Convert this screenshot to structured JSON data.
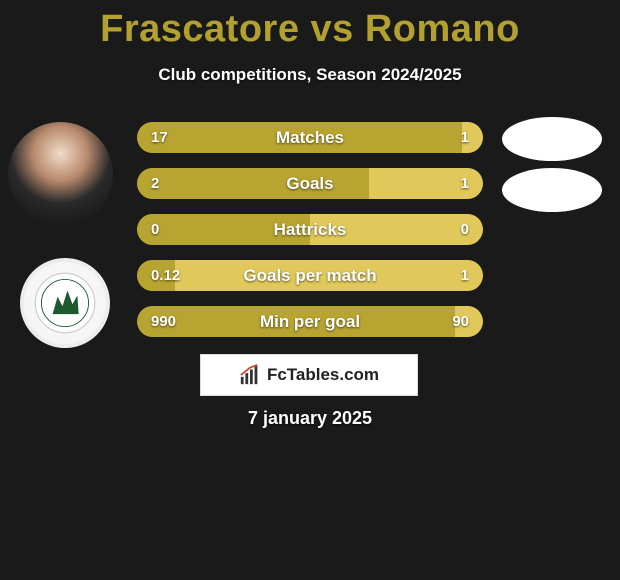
{
  "title_color": "#b2a12e",
  "title": "Frascatore vs Romano",
  "subtitle": "Club competitions, Season 2024/2025",
  "date": "7 january 2025",
  "brand": "FcTables.com",
  "colors": {
    "bar_base": "#a89529",
    "left_accent": "#b7a431",
    "right_accent": "#e0c85a",
    "background": "#1a1a1a",
    "white": "#ffffff"
  },
  "rows": [
    {
      "label": "Matches",
      "left": "17",
      "right": "1",
      "left_pct": 94,
      "right_pct": 6
    },
    {
      "label": "Goals",
      "left": "2",
      "right": "1",
      "left_pct": 67,
      "right_pct": 33
    },
    {
      "label": "Hattricks",
      "left": "0",
      "right": "0",
      "left_pct": 50,
      "right_pct": 50
    },
    {
      "label": "Goals per match",
      "left": "0.12",
      "right": "1",
      "left_pct": 11,
      "right_pct": 89
    },
    {
      "label": "Min per goal",
      "left": "990",
      "right": "90",
      "left_pct": 92,
      "right_pct": 8
    }
  ],
  "crest_colors": {
    "ring_text": "#1f5a2f",
    "wolf": "#1f5a2f",
    "bg": "#ffffff"
  }
}
